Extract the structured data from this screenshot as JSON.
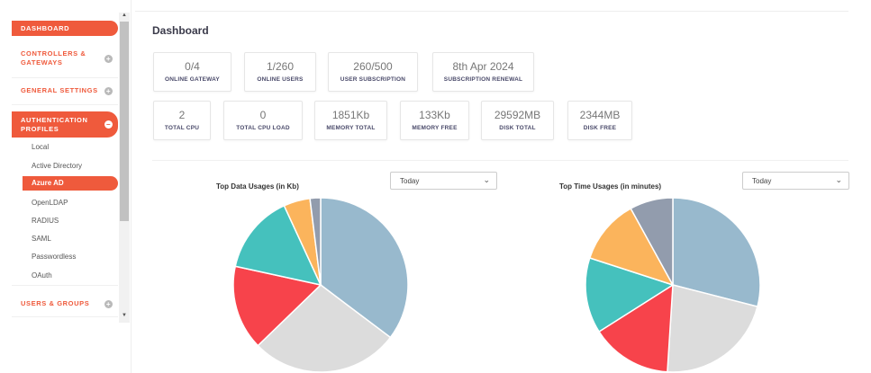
{
  "sidebar": {
    "dashboard": "DASHBOARD",
    "controllers": "CONTROLLERS &\nGATEWAYS",
    "general_settings": "GENERAL SETTINGS",
    "auth_profiles": "AUTHENTICATION\nPROFILES",
    "auth_items": [
      "Local",
      "Active Directory",
      "Azure AD",
      "OpenLDAP",
      "RADIUS",
      "SAML",
      "Passwordless",
      "OAuth"
    ],
    "users_groups": "USERS & GROUPS"
  },
  "main": {
    "title": "Dashboard",
    "stats_row1": [
      {
        "value": "0/4",
        "label": "ONLINE GATEWAY"
      },
      {
        "value": "1/260",
        "label": "ONLINE USERS"
      },
      {
        "value": "260/500",
        "label": "USER SUBSCRIPTION"
      },
      {
        "value": "8th Apr 2024",
        "label": "SUBSCRIPTION RENEWAL"
      }
    ],
    "stats_row2": [
      {
        "value": "2",
        "label": "TOTAL CPU"
      },
      {
        "value": "0",
        "label": "TOTAL CPU LOAD"
      },
      {
        "value": "1851Kb",
        "label": "MEMORY TOTAL"
      },
      {
        "value": "133Kb",
        "label": "MEMORY FREE"
      },
      {
        "value": "29592MB",
        "label": "DISK TOTAL"
      },
      {
        "value": "2344MB",
        "label": "DISK FREE"
      }
    ]
  },
  "chart_data": [
    {
      "type": "pie",
      "title": "Top Data Usages (in Kb)",
      "range_select": "Today",
      "values": [
        36,
        28,
        16,
        15,
        5,
        2
      ],
      "colors": [
        "#98b9cd",
        "#dcdcdc",
        "#f7434b",
        "#45c1bd",
        "#fbb45c",
        "#929cad"
      ]
    },
    {
      "type": "pie",
      "title": "Top Time Usages (in minutes)",
      "range_select": "Today",
      "values": [
        29,
        22,
        15,
        14,
        12,
        8
      ],
      "colors": [
        "#98b9cd",
        "#dcdcdc",
        "#f7434b",
        "#45c1bd",
        "#fbb45c",
        "#929cad"
      ]
    }
  ]
}
